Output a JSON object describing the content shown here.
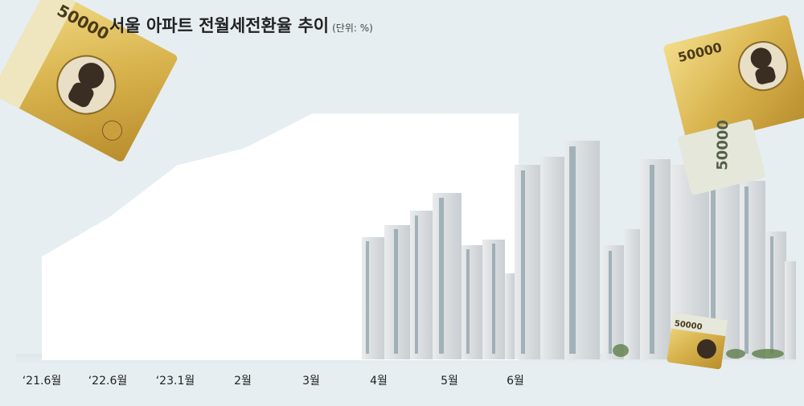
{
  "chart_data": {
    "type": "area",
    "title": "서울 아파트 전월세전환율 추이",
    "unit_label": "(단위: %)",
    "categories": [
      "‘21.6월",
      "‘22.6월",
      "‘23.1월",
      "2월",
      "3월",
      "4월",
      "5월",
      "6월"
    ],
    "values": [
      4.2,
      5.8,
      7.9,
      8.6,
      10.0,
      10.0,
      10.0,
      10.0
    ],
    "ylim": [
      0,
      10.5
    ],
    "grid": false,
    "legend": "none",
    "colors": {
      "background": "#e6eef1",
      "area": "#ffffff",
      "text": "#222222"
    }
  },
  "illustrations": [
    "banknote-50000-left",
    "banknote-50000-right",
    "banknote-50000-small",
    "apartment-buildings"
  ]
}
